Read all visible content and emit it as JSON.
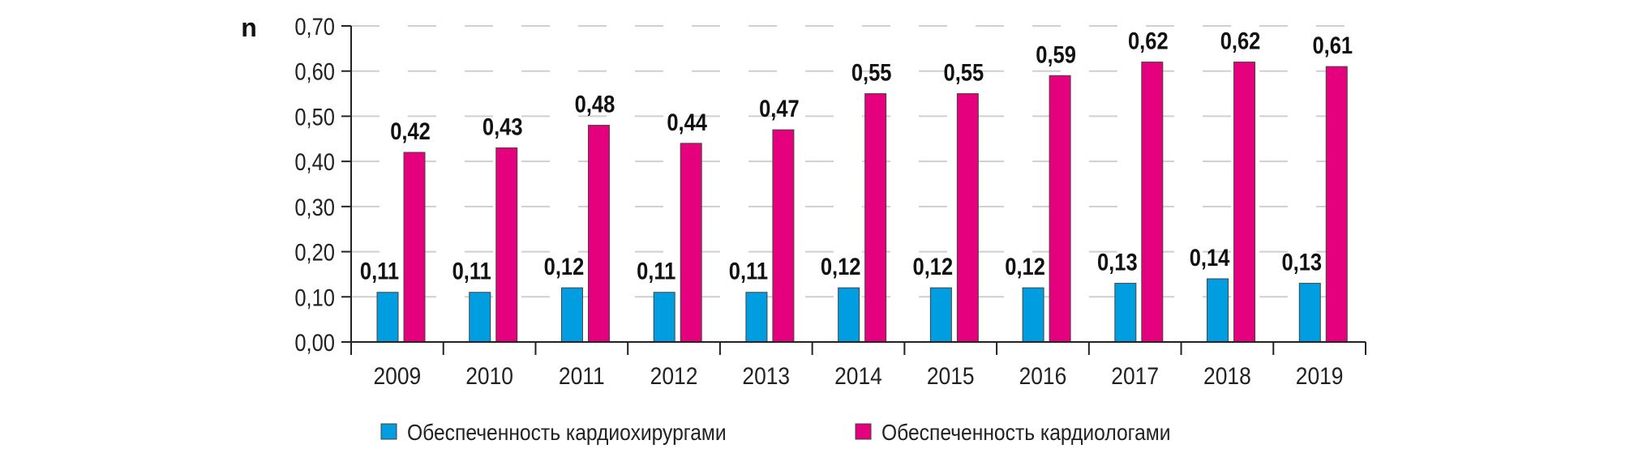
{
  "chart_data": {
    "type": "bar",
    "title": "",
    "ylabel": "n",
    "xlabel": "",
    "ylim": [
      0,
      0.7
    ],
    "yticks": [
      "0,00",
      "0,10",
      "0,20",
      "0,30",
      "0,40",
      "0,50",
      "0,60",
      "0,70"
    ],
    "grid": true,
    "legend_position": "bottom",
    "categories": [
      "2009",
      "2010",
      "2011",
      "2012",
      "2013",
      "2014",
      "2015",
      "2016",
      "2017",
      "2018",
      "2019"
    ],
    "series": [
      {
        "name": "Обеспеченность кардиохирургами",
        "color": "#009ee0",
        "values": [
          0.11,
          0.11,
          0.12,
          0.11,
          0.11,
          0.12,
          0.12,
          0.12,
          0.13,
          0.14,
          0.13
        ],
        "labels": [
          "0,11",
          "0,11",
          "0,12",
          "0,11",
          "0,11",
          "0,12",
          "0,12",
          "0,12",
          "0,13",
          "0,14",
          "0,13"
        ]
      },
      {
        "name": "Обеспеченность кардиологами",
        "color": "#e5007d",
        "values": [
          0.42,
          0.43,
          0.48,
          0.44,
          0.47,
          0.55,
          0.55,
          0.59,
          0.62,
          0.62,
          0.61
        ],
        "labels": [
          "0,42",
          "0,43",
          "0,48",
          "0,44",
          "0,47",
          "0,55",
          "0,55",
          "0,59",
          "0,62",
          "0,62",
          "0,61"
        ]
      }
    ]
  }
}
